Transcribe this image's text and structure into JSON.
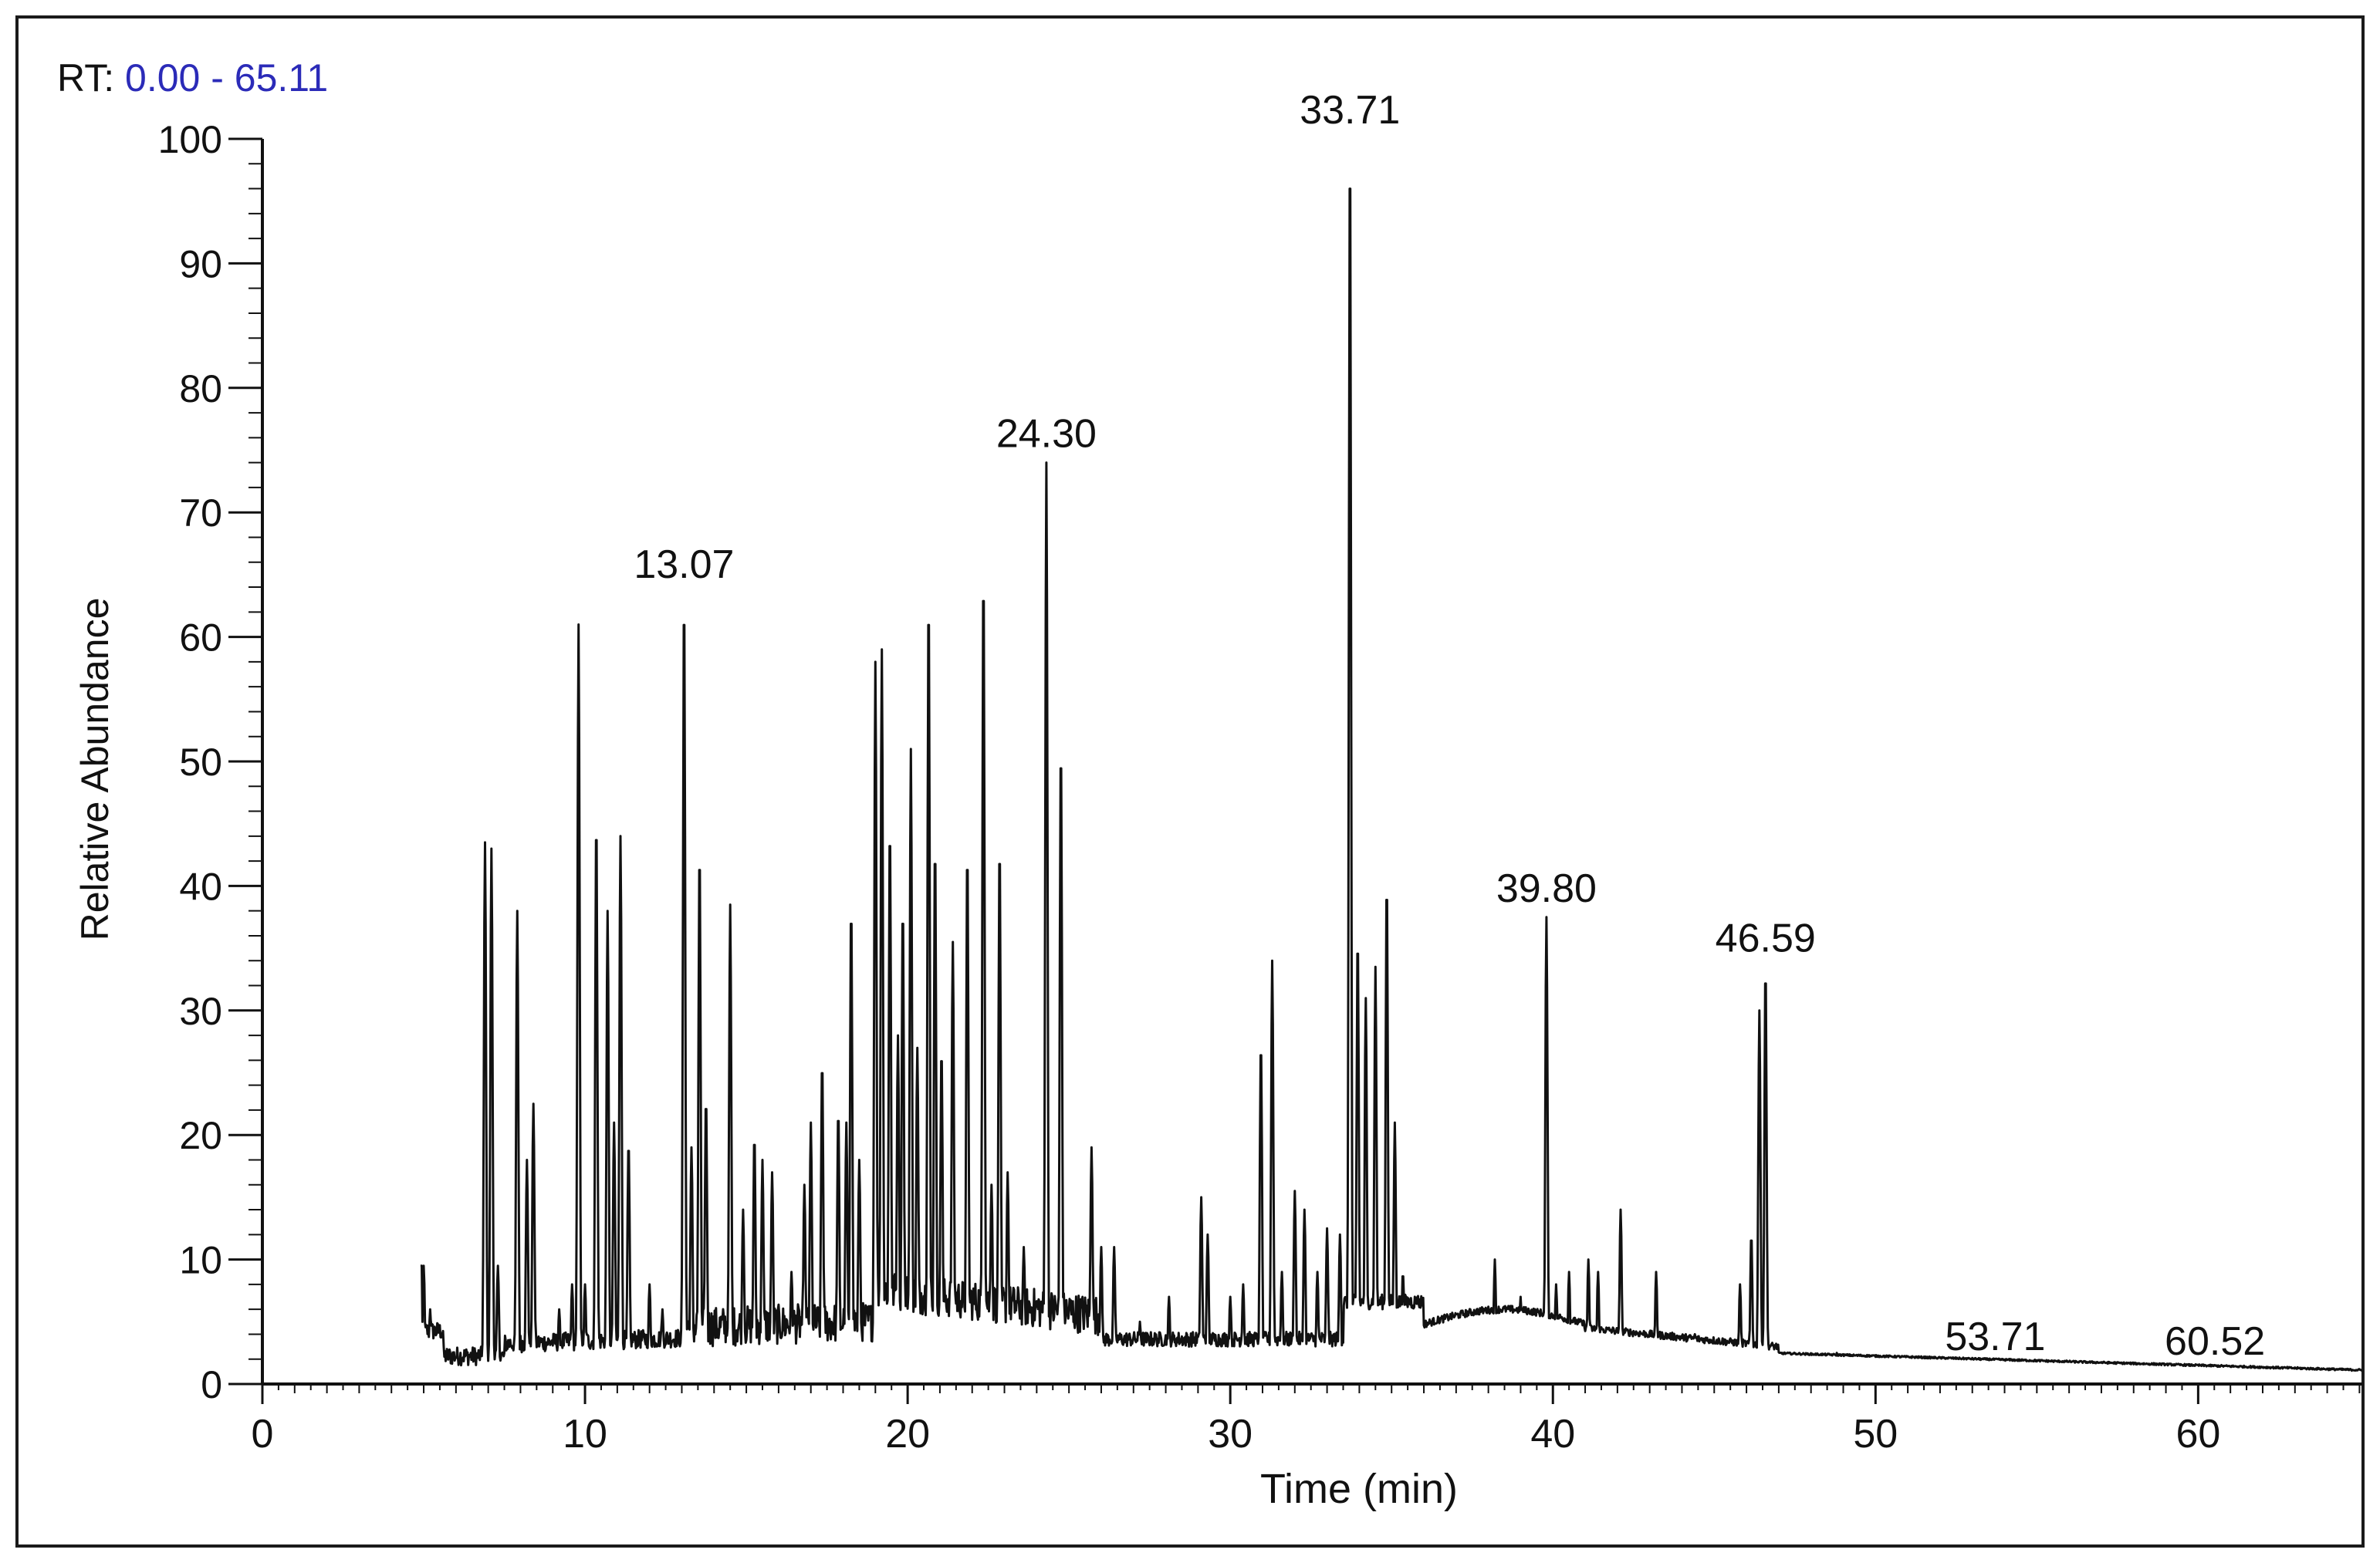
{
  "header": {
    "rt_prefix": "RT:",
    "rt_range": "0.00 - 65.11"
  },
  "colors": {
    "trace": "#111111",
    "rt_range": "#2b2bb8",
    "axis": "#111111"
  },
  "chart_data": {
    "type": "line",
    "title": "",
    "xlabel": "Time (min)",
    "ylabel": "Relative Abundance",
    "xlim": [
      0,
      65.11
    ],
    "ylim": [
      0,
      100
    ],
    "x_ticks": [
      0,
      10,
      20,
      30,
      40,
      50,
      60
    ],
    "y_ticks": [
      0,
      10,
      20,
      30,
      40,
      50,
      60,
      70,
      80,
      90,
      100
    ],
    "grid": false,
    "legend": "none",
    "trace_start": 4.9,
    "peaks": [
      {
        "x": 5.0,
        "y": 9.5
      },
      {
        "x": 5.2,
        "y": 6
      },
      {
        "x": 6.9,
        "y": 43.5
      },
      {
        "x": 7.1,
        "y": 43
      },
      {
        "x": 7.3,
        "y": 9.5
      },
      {
        "x": 7.9,
        "y": 20
      },
      {
        "x": 7.9,
        "y": 38
      },
      {
        "x": 8.2,
        "y": 18
      },
      {
        "x": 8.4,
        "y": 22.5
      },
      {
        "x": 9.2,
        "y": 6
      },
      {
        "x": 9.6,
        "y": 8
      },
      {
        "x": 9.8,
        "y": 61
      },
      {
        "x": 10.0,
        "y": 8
      },
      {
        "x": 10.35,
        "y": 45.5
      },
      {
        "x": 10.7,
        "y": 38
      },
      {
        "x": 10.9,
        "y": 21
      },
      {
        "x": 11.1,
        "y": 44
      },
      {
        "x": 11.35,
        "y": 19.5
      },
      {
        "x": 12.0,
        "y": 8
      },
      {
        "x": 12.4,
        "y": 6
      },
      {
        "x": 13.07,
        "y": 63.5
      },
      {
        "x": 13.3,
        "y": 19
      },
      {
        "x": 13.55,
        "y": 43
      },
      {
        "x": 13.75,
        "y": 23
      },
      {
        "x": 14.5,
        "y": 38.5
      },
      {
        "x": 14.9,
        "y": 14
      },
      {
        "x": 15.25,
        "y": 20
      },
      {
        "x": 15.5,
        "y": 18
      },
      {
        "x": 15.8,
        "y": 17
      },
      {
        "x": 16.4,
        "y": 9
      },
      {
        "x": 16.8,
        "y": 16
      },
      {
        "x": 17.0,
        "y": 21
      },
      {
        "x": 17.35,
        "y": 26
      },
      {
        "x": 17.85,
        "y": 22
      },
      {
        "x": 18.1,
        "y": 21
      },
      {
        "x": 18.25,
        "y": 38.5
      },
      {
        "x": 18.5,
        "y": 18
      },
      {
        "x": 19.0,
        "y": 58
      },
      {
        "x": 19.2,
        "y": 59
      },
      {
        "x": 19.45,
        "y": 45
      },
      {
        "x": 19.7,
        "y": 28
      },
      {
        "x": 19.85,
        "y": 38.5
      },
      {
        "x": 20.1,
        "y": 51
      },
      {
        "x": 20.3,
        "y": 27
      },
      {
        "x": 20.65,
        "y": 63.5
      },
      {
        "x": 20.85,
        "y": 43.5
      },
      {
        "x": 21.05,
        "y": 27
      },
      {
        "x": 21.4,
        "y": 35.5
      },
      {
        "x": 21.85,
        "y": 43
      },
      {
        "x": 22.35,
        "y": 65.5
      },
      {
        "x": 22.6,
        "y": 16
      },
      {
        "x": 22.85,
        "y": 43.5
      },
      {
        "x": 23.1,
        "y": 17
      },
      {
        "x": 23.6,
        "y": 11
      },
      {
        "x": 24.3,
        "y": 74
      },
      {
        "x": 24.75,
        "y": 51.5
      },
      {
        "x": 25.7,
        "y": 19
      },
      {
        "x": 26.0,
        "y": 11
      },
      {
        "x": 26.4,
        "y": 11
      },
      {
        "x": 27.2,
        "y": 5
      },
      {
        "x": 28.1,
        "y": 7
      },
      {
        "x": 29.1,
        "y": 15
      },
      {
        "x": 29.3,
        "y": 12
      },
      {
        "x": 30.0,
        "y": 7
      },
      {
        "x": 30.4,
        "y": 8
      },
      {
        "x": 30.95,
        "y": 27.5
      },
      {
        "x": 31.3,
        "y": 34
      },
      {
        "x": 31.6,
        "y": 9
      },
      {
        "x": 32.0,
        "y": 15.5
      },
      {
        "x": 32.3,
        "y": 14
      },
      {
        "x": 32.7,
        "y": 9
      },
      {
        "x": 33.0,
        "y": 12.5
      },
      {
        "x": 33.4,
        "y": 12
      },
      {
        "x": 33.71,
        "y": 100
      },
      {
        "x": 33.95,
        "y": 36
      },
      {
        "x": 34.2,
        "y": 31
      },
      {
        "x": 34.5,
        "y": 33.5
      },
      {
        "x": 34.85,
        "y": 40.5
      },
      {
        "x": 35.1,
        "y": 21
      },
      {
        "x": 35.35,
        "y": 9
      },
      {
        "x": 35.8,
        "y": 7
      },
      {
        "x": 38.2,
        "y": 10
      },
      {
        "x": 39.0,
        "y": 7
      },
      {
        "x": 39.8,
        "y": 37.5
      },
      {
        "x": 40.1,
        "y": 8
      },
      {
        "x": 40.5,
        "y": 9
      },
      {
        "x": 41.1,
        "y": 10
      },
      {
        "x": 41.4,
        "y": 9
      },
      {
        "x": 42.1,
        "y": 14
      },
      {
        "x": 43.2,
        "y": 9
      },
      {
        "x": 44.4,
        "y": 4
      },
      {
        "x": 45.8,
        "y": 8
      },
      {
        "x": 46.15,
        "y": 12
      },
      {
        "x": 46.4,
        "y": 30
      },
      {
        "x": 46.59,
        "y": 33.5
      },
      {
        "x": 48.8,
        "y": 2.5
      }
    ],
    "annotations": [
      {
        "x": 13.07,
        "y": 63.5,
        "text": "13.07"
      },
      {
        "x": 24.3,
        "y": 74,
        "text": "24.30"
      },
      {
        "x": 33.71,
        "y": 100,
        "text": "33.71"
      },
      {
        "x": 39.8,
        "y": 37.5,
        "text": "39.80"
      },
      {
        "x": 46.59,
        "y": 33.5,
        "text": "46.59"
      },
      {
        "x": 53.71,
        "y": 1.5,
        "text": "53.71"
      },
      {
        "x": 60.52,
        "y": 1.1,
        "text": "60.52"
      }
    ]
  }
}
